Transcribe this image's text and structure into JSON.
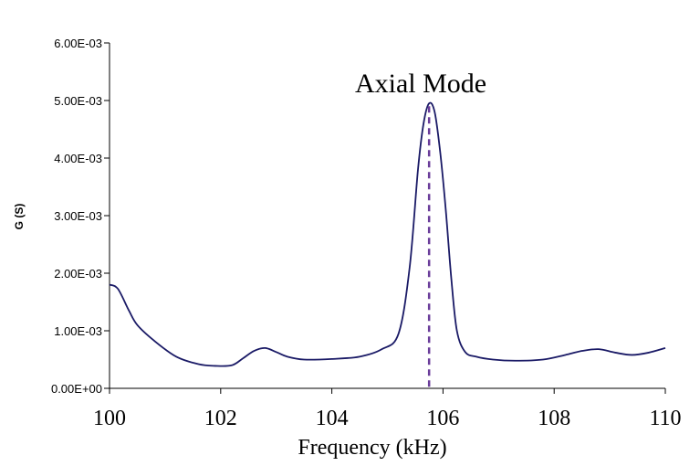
{
  "chart_data": {
    "type": "line",
    "xlabel": "Frequency (kHz)",
    "ylabel": "G (S)",
    "xlim": [
      100,
      110
    ],
    "ylim": [
      0,
      0.006
    ],
    "x_ticks": [
      100,
      102,
      104,
      106,
      108,
      110
    ],
    "x_tick_labels": [
      "100",
      "102",
      "104",
      "106",
      "108",
      "110"
    ],
    "y_ticks": [
      0,
      0.001,
      0.002,
      0.003,
      0.004,
      0.005,
      0.006
    ],
    "y_tick_labels": [
      "0.00E+00",
      "1.00E-03",
      "2.00E-03",
      "3.00E-03",
      "4.00E-03",
      "5.00E-03",
      "6.00E-03"
    ],
    "grid": false,
    "series": [
      {
        "color": "#1a1a66",
        "x": [
          100,
          100.15,
          100.35,
          100.5,
          100.8,
          101.2,
          101.6,
          101.9,
          102.2,
          102.4,
          102.6,
          102.8,
          103.0,
          103.2,
          103.5,
          104.0,
          104.5,
          104.9,
          105.2,
          105.4,
          105.55,
          105.65,
          105.75,
          105.85,
          105.95,
          106.05,
          106.15,
          106.25,
          106.4,
          106.6,
          106.9,
          107.3,
          107.8,
          108.2,
          108.5,
          108.8,
          109.1,
          109.4,
          109.7,
          110
        ],
        "y": [
          0.0018,
          0.00173,
          0.00135,
          0.0011,
          0.00083,
          0.00055,
          0.00042,
          0.00039,
          0.0004,
          0.00052,
          0.00065,
          0.0007,
          0.00063,
          0.00055,
          0.0005,
          0.00051,
          0.00055,
          0.00068,
          0.00095,
          0.0021,
          0.0038,
          0.0046,
          0.00495,
          0.0048,
          0.0041,
          0.0031,
          0.0019,
          0.001,
          0.00063,
          0.00055,
          0.0005,
          0.00048,
          0.0005,
          0.00058,
          0.00065,
          0.00068,
          0.00062,
          0.00058,
          0.00062,
          0.0007
        ]
      }
    ],
    "reference_lines": [
      {
        "x": 105.75,
        "y_top": 0.0049,
        "color": "#6a3d9a",
        "style": "dashed"
      }
    ],
    "annotations": [
      {
        "text": "Axial Mode",
        "x": 105.6,
        "y": 0.0053
      }
    ]
  }
}
